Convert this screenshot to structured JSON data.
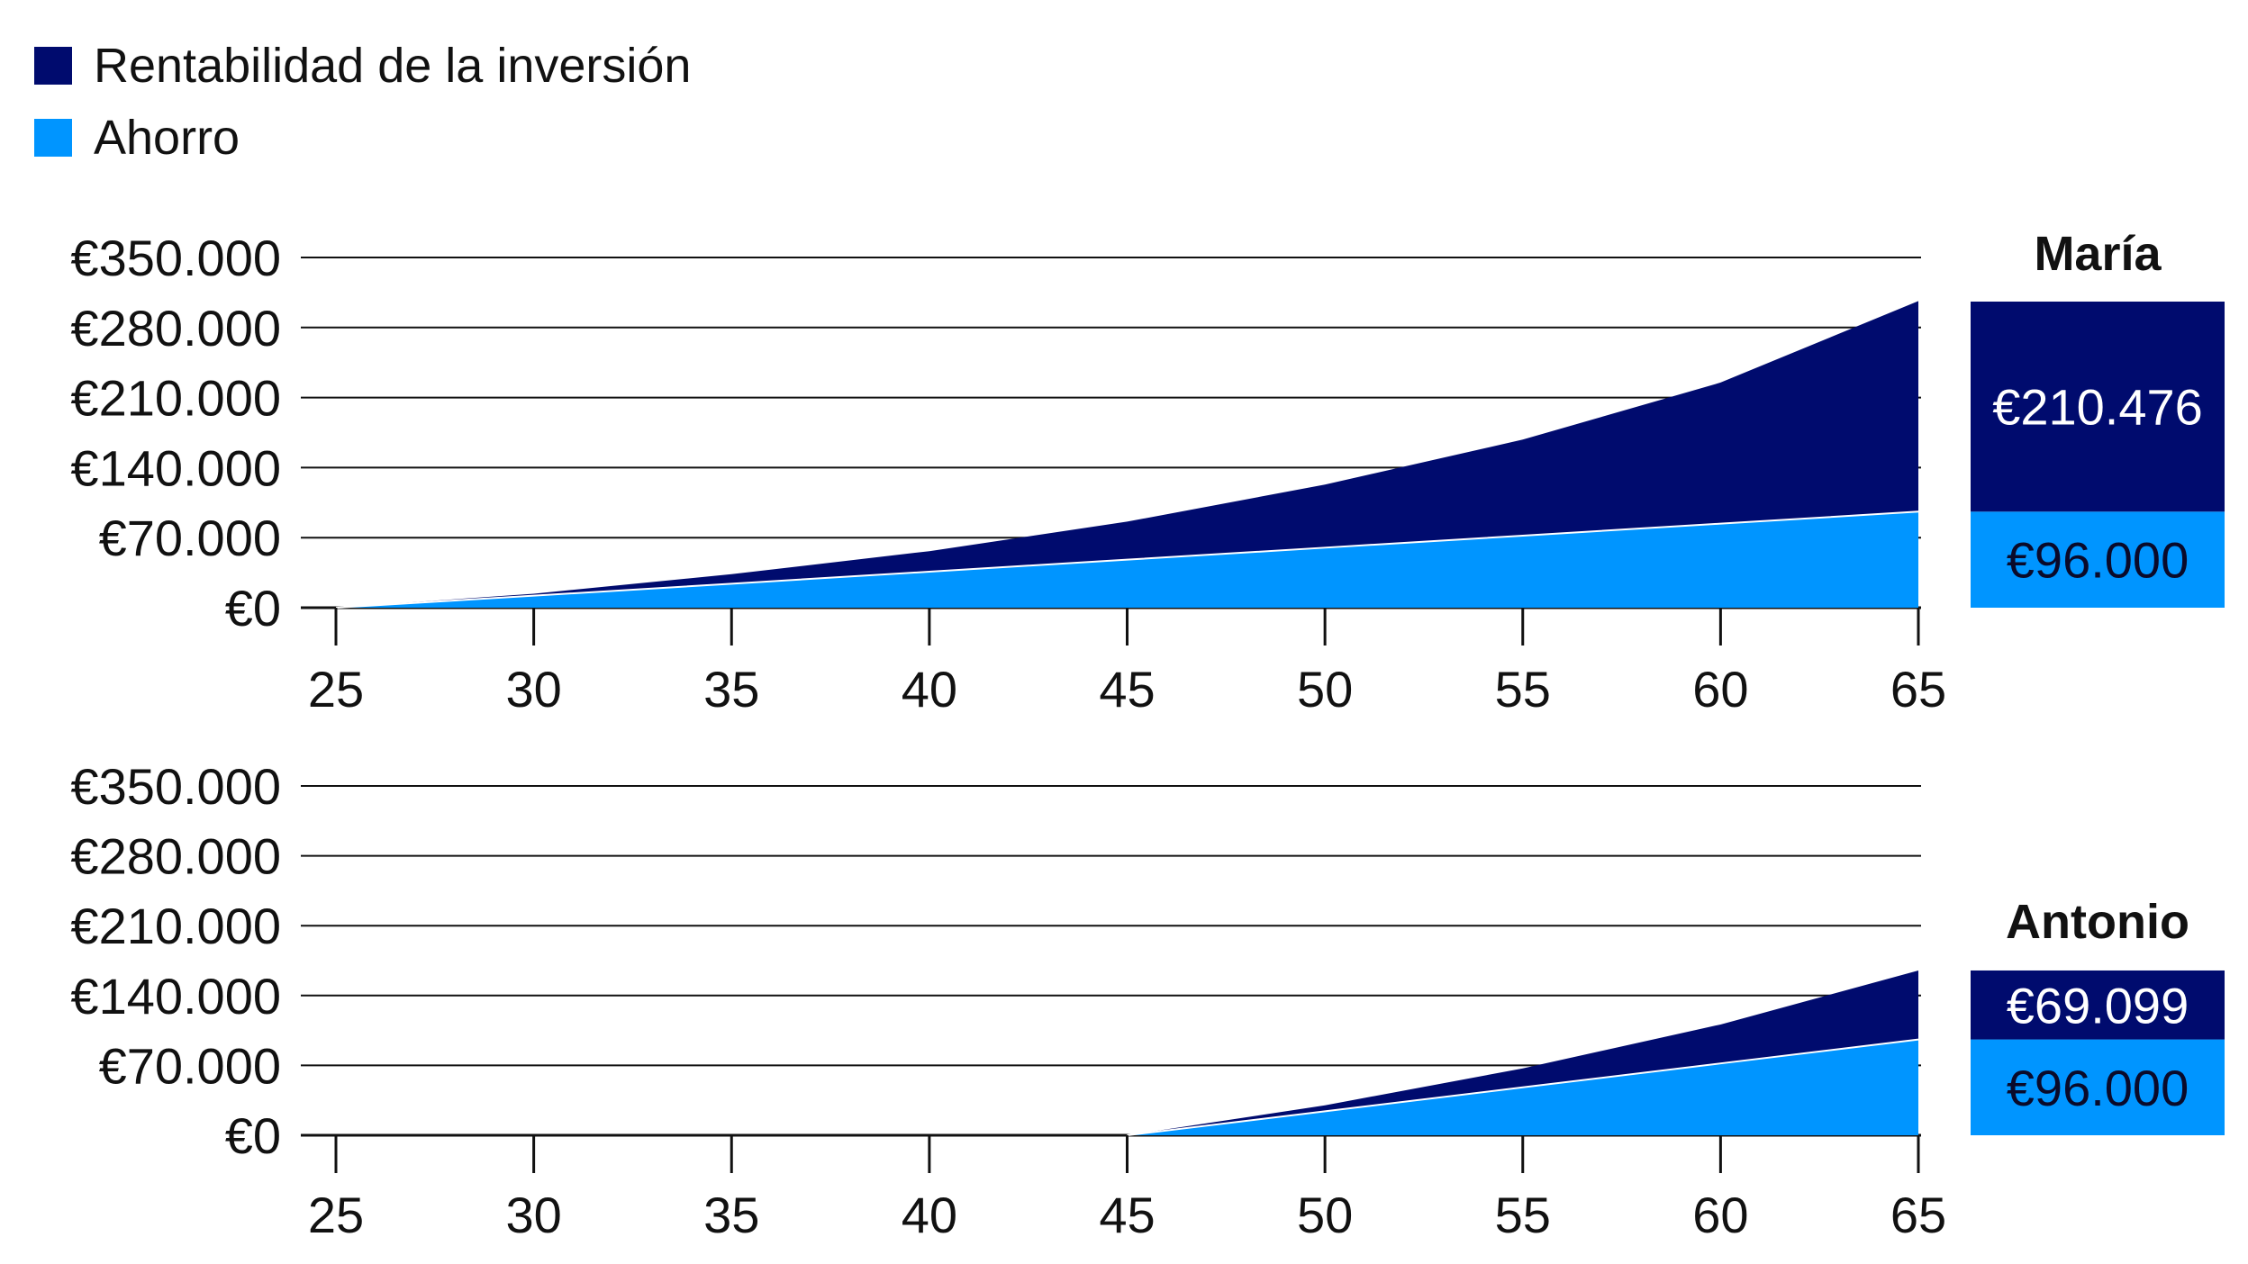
{
  "legend": {
    "items": [
      {
        "label": "Rentabilidad de la inversión",
        "color": "#000b6e"
      },
      {
        "label": "Ahorro",
        "color": "#0095ff"
      }
    ]
  },
  "colors": {
    "return": "#000b6e",
    "savings": "#0095ff",
    "grid": "#111111",
    "separator": "#ffffff"
  },
  "chart_data": [
    {
      "type": "area",
      "name": "María",
      "y_tick_labels": [
        "€0",
        "€70.000",
        "€140.000",
        "€210.000",
        "€280.000",
        "€350.000"
      ],
      "y_ticks": [
        0,
        70000,
        140000,
        210000,
        280000,
        350000
      ],
      "ylim": [
        0,
        350000
      ],
      "x_tick_labels": [
        "25",
        "30",
        "35",
        "40",
        "45",
        "50",
        "55",
        "60",
        "65"
      ],
      "x_ticks": [
        25,
        30,
        35,
        40,
        45,
        50,
        55,
        60,
        65
      ],
      "xlim": [
        25,
        65
      ],
      "grid": true,
      "stacked": true,
      "series": [
        {
          "name": "Ahorro",
          "x": [
            25,
            30,
            35,
            40,
            45,
            50,
            55,
            60,
            65
          ],
          "values": [
            0,
            12000,
            24000,
            36000,
            48000,
            60000,
            72000,
            84000,
            96000
          ]
        },
        {
          "name": "Rentabilidad de la inversión",
          "x": [
            25,
            30,
            35,
            40,
            45,
            50,
            55,
            60,
            65
          ],
          "values": [
            0,
            2000,
            9500,
            20500,
            38000,
            63000,
            96000,
            141000,
            210476
          ]
        }
      ],
      "totals_box": {
        "top_label": "€210.476",
        "bottom_label": "€96.000",
        "top_value": 210476,
        "bottom_value": 96000
      }
    },
    {
      "type": "area",
      "name": "Antonio",
      "y_tick_labels": [
        "€0",
        "€70.000",
        "€140.000",
        "€210.000",
        "€280.000",
        "€350.000"
      ],
      "y_ticks": [
        0,
        70000,
        140000,
        210000,
        280000,
        350000
      ],
      "ylim": [
        0,
        350000
      ],
      "x_tick_labels": [
        "25",
        "30",
        "35",
        "40",
        "45",
        "50",
        "55",
        "60",
        "65"
      ],
      "x_ticks": [
        25,
        30,
        35,
        40,
        45,
        50,
        55,
        60,
        65
      ],
      "xlim": [
        25,
        65
      ],
      "grid": true,
      "stacked": true,
      "series": [
        {
          "name": "Ahorro",
          "x": [
            45,
            50,
            55,
            60,
            65
          ],
          "values": [
            0,
            24000,
            48000,
            72000,
            96000
          ]
        },
        {
          "name": "Rentabilidad de la inversión",
          "x": [
            45,
            50,
            55,
            60,
            65
          ],
          "values": [
            0,
            6000,
            19000,
            39000,
            69099
          ]
        }
      ],
      "totals_box": {
        "top_label": "€69.099",
        "bottom_label": "€96.000",
        "top_value": 69099,
        "bottom_value": 96000
      }
    }
  ]
}
